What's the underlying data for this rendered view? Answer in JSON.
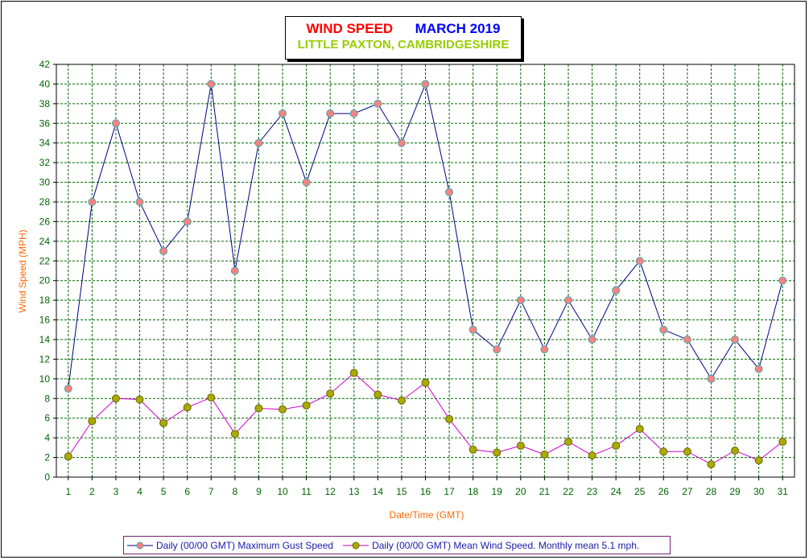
{
  "title": {
    "part1": "WIND SPEED",
    "part2": "MARCH 2019",
    "subtitle": "LITTLE PAXTON, CAMBRIDGESHIRE"
  },
  "colors": {
    "title_part1": "#ff0000",
    "title_part2": "#0000ff",
    "subtitle": "#99cc00",
    "axis_label": "#ff6600",
    "tick_label": "#006600",
    "grid": "#006600",
    "gust_line": "#000080",
    "gust_marker": "#ff8080",
    "mean_line": "#cc00cc",
    "mean_marker": "#aaaa00"
  },
  "legend": {
    "gust_label": "Daily (00/00 GMT) Maximum Gust Speed",
    "mean_label": "Daily (00/00 GMT) Mean Wind Speed. Monthly mean 5.1 mph."
  },
  "chart_data": {
    "type": "line",
    "title": "WIND SPEED    MARCH 2019",
    "subtitle": "LITTLE PAXTON, CAMBRIDGESHIRE",
    "xlabel": "Date/Time (GMT)",
    "ylabel": "Wind Speed (MPH)",
    "ylim": [
      0,
      42
    ],
    "yticks": [
      0,
      2,
      4,
      6,
      8,
      10,
      12,
      14,
      16,
      18,
      20,
      22,
      24,
      26,
      28,
      30,
      32,
      34,
      36,
      38,
      40,
      42
    ],
    "grid": true,
    "legend_position": "bottom",
    "categories": [
      "1",
      "2",
      "3",
      "4",
      "5",
      "6",
      "7",
      "8",
      "9",
      "10",
      "11",
      "12",
      "13",
      "14",
      "15",
      "16",
      "17",
      "18",
      "19",
      "20",
      "21",
      "22",
      "23",
      "24",
      "25",
      "26",
      "27",
      "28",
      "29",
      "30",
      "31"
    ],
    "series": [
      {
        "name": "Daily (00/00 GMT) Maximum Gust Speed",
        "values": [
          9,
          28,
          36,
          28,
          23,
          26,
          40,
          21,
          34,
          37,
          30,
          37,
          37,
          38,
          34,
          40,
          29,
          15,
          13,
          18,
          13,
          18,
          14,
          19,
          22,
          15,
          14,
          10,
          14,
          11,
          20
        ]
      },
      {
        "name": "Daily (00/00 GMT) Mean Wind Speed. Monthly mean 5.1 mph.",
        "values": [
          2.1,
          5.7,
          8.0,
          7.9,
          5.5,
          7.1,
          8.1,
          4.4,
          7.0,
          6.9,
          7.3,
          8.5,
          10.6,
          8.4,
          7.8,
          9.6,
          5.9,
          2.8,
          2.5,
          3.2,
          2.3,
          3.6,
          2.2,
          3.2,
          4.9,
          2.6,
          2.6,
          1.3,
          2.7,
          1.7,
          3.6
        ]
      }
    ]
  }
}
